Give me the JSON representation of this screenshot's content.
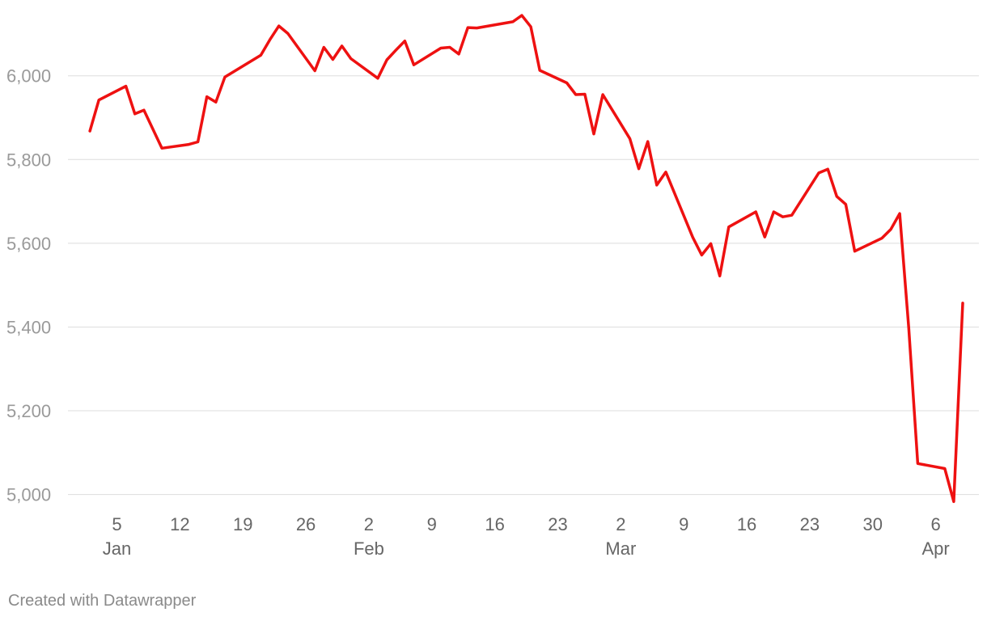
{
  "chart_data": {
    "type": "line",
    "title": "",
    "xlabel": "",
    "ylabel": "",
    "ylim": [
      4980,
      6150
    ],
    "xlim": [
      "2025-01-01",
      "2025-04-09"
    ],
    "grid": true,
    "line_color": "#ee1111",
    "grid_color": "#dddddd",
    "y_tick_color": "#9a9a9a",
    "x_tick_color": "#666666",
    "y_ticks": [
      {
        "value": 5000,
        "label": "5,000"
      },
      {
        "value": 5200,
        "label": "5,200"
      },
      {
        "value": 5400,
        "label": "5,400"
      },
      {
        "value": 5600,
        "label": "5,600"
      },
      {
        "value": 5800,
        "label": "5,800"
      },
      {
        "value": 6000,
        "label": "6,000"
      }
    ],
    "x_ticks": [
      {
        "date": "2025-01-05",
        "label": "5",
        "month": "Jan"
      },
      {
        "date": "2025-01-12",
        "label": "12",
        "month": ""
      },
      {
        "date": "2025-01-19",
        "label": "19",
        "month": ""
      },
      {
        "date": "2025-01-26",
        "label": "26",
        "month": ""
      },
      {
        "date": "2025-02-02",
        "label": "2",
        "month": "Feb"
      },
      {
        "date": "2025-02-09",
        "label": "9",
        "month": ""
      },
      {
        "date": "2025-02-16",
        "label": "16",
        "month": ""
      },
      {
        "date": "2025-02-23",
        "label": "23",
        "month": ""
      },
      {
        "date": "2025-03-02",
        "label": "2",
        "month": "Mar"
      },
      {
        "date": "2025-03-09",
        "label": "9",
        "month": ""
      },
      {
        "date": "2025-03-16",
        "label": "16",
        "month": ""
      },
      {
        "date": "2025-03-23",
        "label": "23",
        "month": ""
      },
      {
        "date": "2025-03-30",
        "label": "30",
        "month": ""
      },
      {
        "date": "2025-04-06",
        "label": "6",
        "month": "Apr"
      }
    ],
    "series": [
      {
        "points": [
          [
            "2025-01-02",
            5868
          ],
          [
            "2025-01-03",
            5942
          ],
          [
            "2025-01-06",
            5975
          ],
          [
            "2025-01-07",
            5909
          ],
          [
            "2025-01-08",
            5918
          ],
          [
            "2025-01-10",
            5827
          ],
          [
            "2025-01-13",
            5836
          ],
          [
            "2025-01-14",
            5842
          ],
          [
            "2025-01-15",
            5950
          ],
          [
            "2025-01-16",
            5937
          ],
          [
            "2025-01-17",
            5997
          ],
          [
            "2025-01-21",
            6049
          ],
          [
            "2025-01-22",
            6086
          ],
          [
            "2025-01-23",
            6119
          ],
          [
            "2025-01-24",
            6101
          ],
          [
            "2025-01-27",
            6012
          ],
          [
            "2025-01-28",
            6068
          ],
          [
            "2025-01-29",
            6039
          ],
          [
            "2025-01-30",
            6071
          ],
          [
            "2025-01-31",
            6041
          ],
          [
            "2025-02-03",
            5994
          ],
          [
            "2025-02-04",
            6038
          ],
          [
            "2025-02-05",
            6061
          ],
          [
            "2025-02-06",
            6083
          ],
          [
            "2025-02-07",
            6026
          ],
          [
            "2025-02-10",
            6066
          ],
          [
            "2025-02-11",
            6068
          ],
          [
            "2025-02-12",
            6052
          ],
          [
            "2025-02-13",
            6115
          ],
          [
            "2025-02-14",
            6114
          ],
          [
            "2025-02-18",
            6129
          ],
          [
            "2025-02-19",
            6144
          ],
          [
            "2025-02-20",
            6117
          ],
          [
            "2025-02-21",
            6013
          ],
          [
            "2025-02-24",
            5983
          ],
          [
            "2025-02-25",
            5955
          ],
          [
            "2025-02-26",
            5956
          ],
          [
            "2025-02-27",
            5861
          ],
          [
            "2025-02-28",
            5955
          ],
          [
            "2025-03-03",
            5850
          ],
          [
            "2025-03-04",
            5778
          ],
          [
            "2025-03-05",
            5843
          ],
          [
            "2025-03-06",
            5739
          ],
          [
            "2025-03-07",
            5770
          ],
          [
            "2025-03-10",
            5614
          ],
          [
            "2025-03-11",
            5572
          ],
          [
            "2025-03-12",
            5599
          ],
          [
            "2025-03-13",
            5522
          ],
          [
            "2025-03-14",
            5639
          ],
          [
            "2025-03-17",
            5675
          ],
          [
            "2025-03-18",
            5615
          ],
          [
            "2025-03-19",
            5675
          ],
          [
            "2025-03-20",
            5663
          ],
          [
            "2025-03-21",
            5667
          ],
          [
            "2025-03-24",
            5768
          ],
          [
            "2025-03-25",
            5777
          ],
          [
            "2025-03-26",
            5712
          ],
          [
            "2025-03-27",
            5693
          ],
          [
            "2025-03-28",
            5581
          ],
          [
            "2025-03-31",
            5612
          ],
          [
            "2025-04-01",
            5633
          ],
          [
            "2025-04-02",
            5671
          ],
          [
            "2025-04-03",
            5397
          ],
          [
            "2025-04-04",
            5074
          ],
          [
            "2025-04-07",
            5062
          ],
          [
            "2025-04-08",
            4983
          ],
          [
            "2025-04-09",
            5457
          ]
        ]
      }
    ]
  },
  "footer": {
    "credit": "Created with Datawrapper"
  }
}
